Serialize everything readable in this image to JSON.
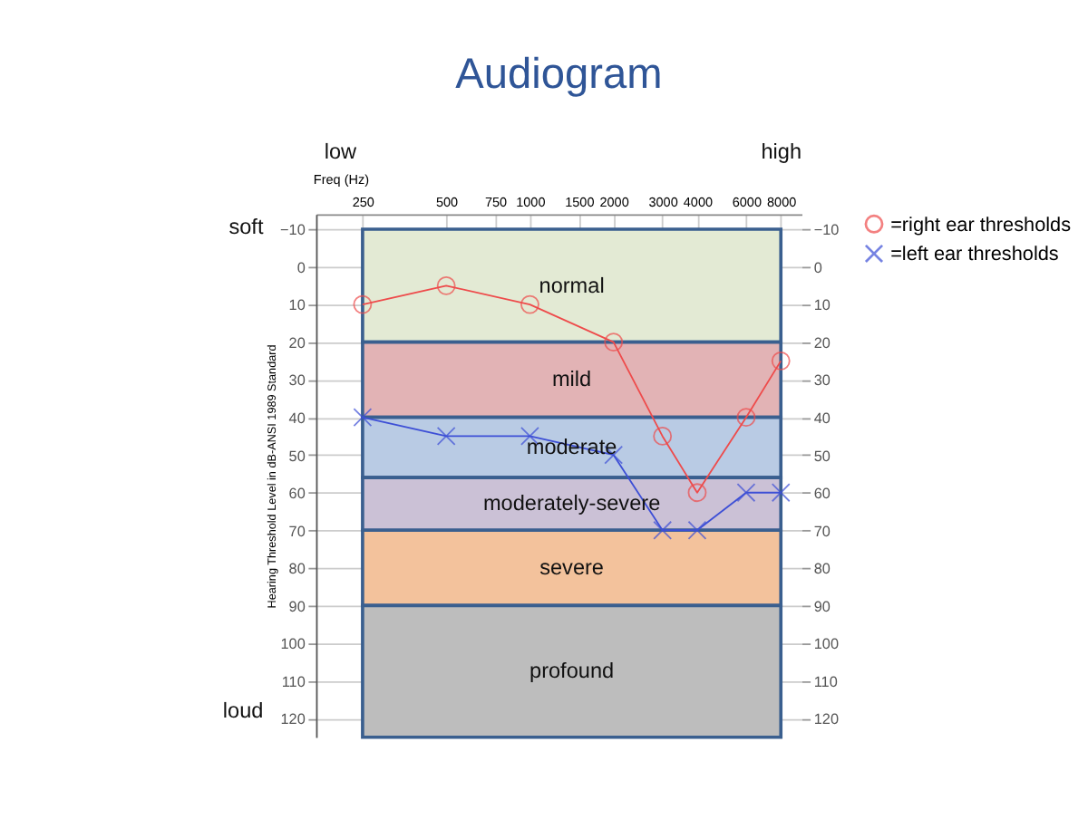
{
  "chart_data": {
    "type": "line",
    "title": "Audiogram",
    "xlabel": "Freq (Hz)",
    "ylabel": "Hearing Threshold Level in dB-ANSI 1989 Standard",
    "x": [
      250,
      500,
      1000,
      2000,
      3000,
      4000,
      6000,
      8000
    ],
    "series": [
      {
        "name": "=right ear thresholds",
        "color": "#ee4b4b",
        "marker": "circle",
        "values": [
          10,
          5,
          10,
          20,
          45,
          60,
          40,
          25
        ]
      },
      {
        "name": "=left ear thresholds",
        "color": "#3d4fd6",
        "marker": "cross",
        "values": [
          40,
          45,
          45,
          50,
          70,
          70,
          60,
          60
        ]
      }
    ],
    "log": "x",
    "xlim": [
      170,
      9500
    ],
    "xticks": [
      250,
      500,
      750,
      1000,
      1500,
      2000,
      3000,
      4000,
      6000,
      8000
    ],
    "ylim": [
      125,
      -14
    ],
    "yticks": [
      -10,
      0,
      10,
      20,
      30,
      40,
      50,
      60,
      70,
      80,
      90,
      100,
      110,
      120
    ],
    "y2lim": [
      125,
      -14
    ],
    "y2ticks": [
      -10,
      0,
      10,
      20,
      30,
      40,
      50,
      60,
      70,
      80,
      90,
      100,
      110,
      120
    ],
    "bands": [
      {
        "axis": "y",
        "from": -10,
        "to": 20,
        "label": "normal",
        "color": "#e3ead4"
      },
      {
        "axis": "y",
        "from": 20,
        "to": 40,
        "label": "mild",
        "color": "#e2b3b5"
      },
      {
        "axis": "y",
        "from": 40,
        "to": 56,
        "label": "moderate",
        "color": "#b9cbe4"
      },
      {
        "axis": "y",
        "from": 56,
        "to": 70,
        "label": "moderately-severe",
        "color": "#cbc1d6"
      },
      {
        "axis": "y",
        "from": 70,
        "to": 90,
        "label": "severe",
        "color": "#f3c29c"
      },
      {
        "axis": "y",
        "from": 90,
        "to": 125,
        "label": "profound",
        "color": "#bdbdbd"
      }
    ],
    "annotations": [
      "low",
      "high",
      "soft",
      "loud"
    ],
    "grid": true,
    "legend": "right",
    "line_style": "solid"
  }
}
